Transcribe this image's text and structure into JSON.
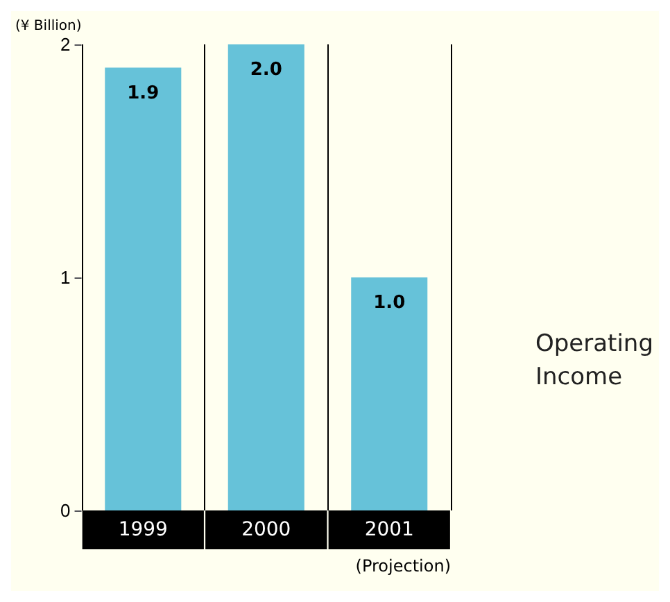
{
  "chart_data": {
    "type": "bar",
    "ylabel": "(¥ Billion)",
    "categories": [
      "1999",
      "2000",
      "2001"
    ],
    "values": [
      1.9,
      2.0,
      1.0
    ],
    "value_labels": [
      "1.9",
      "2.0",
      "1.0"
    ],
    "color": "#66c2d9",
    "ylim": [
      0,
      2
    ],
    "yticks": [
      0,
      1,
      2
    ],
    "grid": "x",
    "annotations": [
      "(Projection)",
      "Operating Income"
    ]
  }
}
